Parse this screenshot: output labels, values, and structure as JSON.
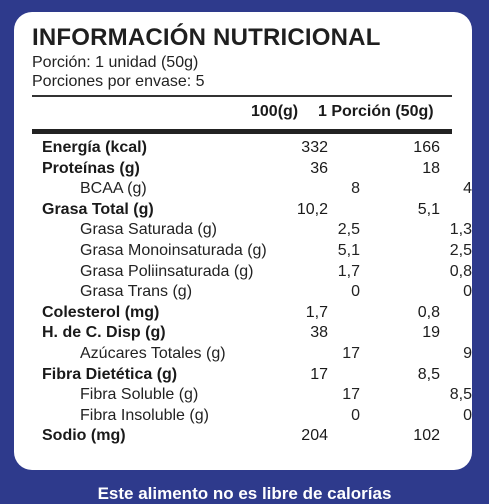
{
  "label": {
    "title": "INFORMACIÓN NUTRICIONAL",
    "serving": "Porción: 1 unidad (50g)",
    "servings_per_pack": "Porciones por envase: 5",
    "col_100g": "100(g)",
    "col_portion": "1 Porción (50g)",
    "rows": [
      {
        "name": "Energía (kcal)",
        "v100": "332",
        "vpor": "166"
      },
      {
        "name": "Proteínas (g)",
        "v100": "36",
        "vpor": "18"
      },
      {
        "name": "BCAA (g)",
        "v100": "8",
        "vpor": "4"
      },
      {
        "name": "Grasa Total (g)",
        "v100": "10,2",
        "vpor": "5,1"
      },
      {
        "name": "Grasa Saturada (g)",
        "v100": "2,5",
        "vpor": "1,3"
      },
      {
        "name": "Grasa Monoinsaturada (g)",
        "v100": "5,1",
        "vpor": "2,5"
      },
      {
        "name": "Grasa Poliinsaturada (g)",
        "v100": "1,7",
        "vpor": "0,8"
      },
      {
        "name": "Grasa Trans (g)",
        "v100": "0",
        "vpor": "0"
      },
      {
        "name": "Colesterol (mg)",
        "v100": "1,7",
        "vpor": "0,8"
      },
      {
        "name": "H. de C. Disp (g)",
        "v100": "38",
        "vpor": "19"
      },
      {
        "name": "Azúcares Totales (g)",
        "v100": "17",
        "vpor": "9"
      },
      {
        "name": "Fibra Dietética (g)",
        "v100": "17",
        "vpor": "8,5"
      },
      {
        "name": "Fibra Soluble (g)",
        "v100": "17",
        "vpor": "8,5"
      },
      {
        "name": "Fibra Insoluble (g)",
        "v100": "0",
        "vpor": "0"
      },
      {
        "name": "Sodio (mg)",
        "v100": "204",
        "vpor": "102"
      }
    ]
  },
  "footer": {
    "text": "Este alimento no es libre de calorías"
  },
  "colors": {
    "background": "#2e3a8c",
    "card": "#ffffff"
  }
}
